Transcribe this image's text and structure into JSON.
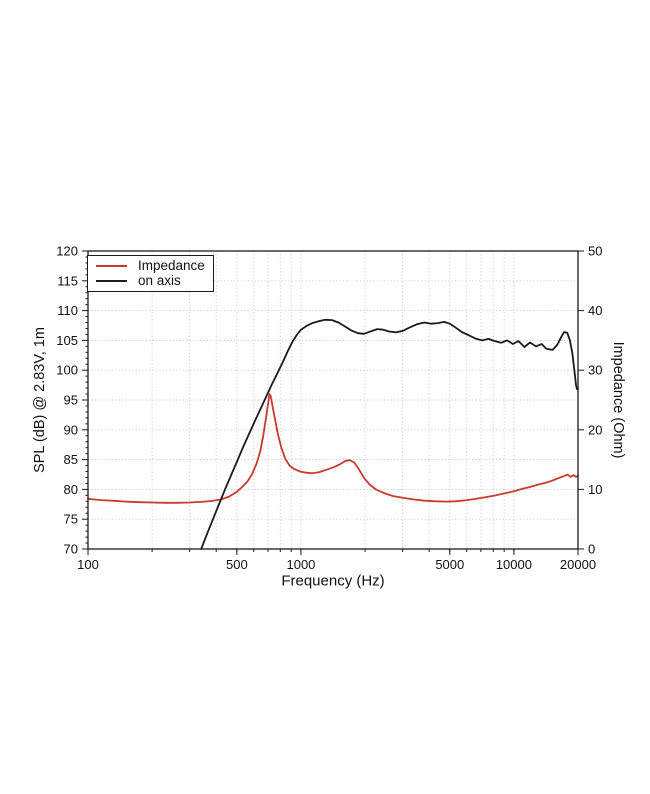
{
  "page": {
    "background": "#ffffff"
  },
  "chart_data": {
    "type": "line",
    "title": "",
    "xlabel": "Frequency (Hz)",
    "ylabel_left": "SPL (dB) @ 2.83V, 1m",
    "ylabel_right": "Impedance (Ohm)",
    "x_scale": "log",
    "xlim": [
      100,
      20000
    ],
    "ylim_left": [
      70,
      120
    ],
    "ylim_right": [
      0,
      50
    ],
    "x_major_ticks": [
      100,
      500,
      1000,
      5000,
      10000,
      20000
    ],
    "x_gridlines": [
      200,
      300,
      400,
      500,
      600,
      700,
      800,
      900,
      1000,
      2000,
      3000,
      4000,
      5000,
      6000,
      7000,
      8000,
      9000,
      10000
    ],
    "y_left_ticks": [
      70,
      75,
      80,
      85,
      90,
      95,
      100,
      105,
      110,
      115,
      120
    ],
    "y_left_gridlines": [
      75,
      80,
      85,
      90,
      95,
      100,
      105,
      110,
      115
    ],
    "y_right_ticks": [
      0,
      10,
      20,
      30,
      40,
      50
    ],
    "grid": {
      "style": "dotted",
      "color": "#bfbfbf"
    },
    "frame_color": "#1a1a1a",
    "legend": {
      "position": "top-left",
      "entries": [
        {
          "label": "Impedance",
          "color": "#c53b30"
        },
        {
          "label": "on axis",
          "color": "#1b1b1b"
        }
      ]
    },
    "series": [
      {
        "name": "Impedance",
        "axis": "right",
        "unit": "Ohm",
        "color": "#c53b30",
        "points": [
          [
            100,
            8.4
          ],
          [
            115,
            8.2
          ],
          [
            130,
            8.1
          ],
          [
            150,
            7.95
          ],
          [
            175,
            7.85
          ],
          [
            200,
            7.8
          ],
          [
            230,
            7.75
          ],
          [
            260,
            7.75
          ],
          [
            300,
            7.8
          ],
          [
            340,
            7.9
          ],
          [
            380,
            8.05
          ],
          [
            420,
            8.3
          ],
          [
            460,
            8.8
          ],
          [
            500,
            9.6
          ],
          [
            530,
            10.4
          ],
          [
            560,
            11.3
          ],
          [
            590,
            12.6
          ],
          [
            620,
            14.4
          ],
          [
            645,
            16.5
          ],
          [
            665,
            19.0
          ],
          [
            685,
            22.0
          ],
          [
            700,
            24.3
          ],
          [
            712,
            26.0
          ],
          [
            722,
            25.6
          ],
          [
            735,
            24.0
          ],
          [
            755,
            21.8
          ],
          [
            780,
            19.2
          ],
          [
            810,
            16.9
          ],
          [
            845,
            15.1
          ],
          [
            885,
            14.0
          ],
          [
            930,
            13.4
          ],
          [
            990,
            13.0
          ],
          [
            1060,
            12.8
          ],
          [
            1130,
            12.7
          ],
          [
            1220,
            12.9
          ],
          [
            1320,
            13.3
          ],
          [
            1420,
            13.7
          ],
          [
            1520,
            14.2
          ],
          [
            1620,
            14.8
          ],
          [
            1700,
            14.9
          ],
          [
            1780,
            14.5
          ],
          [
            1870,
            13.4
          ],
          [
            1980,
            11.9
          ],
          [
            2100,
            10.8
          ],
          [
            2250,
            10.0
          ],
          [
            2450,
            9.4
          ],
          [
            2700,
            8.9
          ],
          [
            3000,
            8.6
          ],
          [
            3400,
            8.3
          ],
          [
            3800,
            8.1
          ],
          [
            4300,
            8.0
          ],
          [
            4800,
            7.95
          ],
          [
            5300,
            8.0
          ],
          [
            5900,
            8.15
          ],
          [
            6600,
            8.4
          ],
          [
            7400,
            8.7
          ],
          [
            8200,
            9.0
          ],
          [
            9100,
            9.35
          ],
          [
            10000,
            9.7
          ],
          [
            11000,
            10.1
          ],
          [
            12000,
            10.45
          ],
          [
            13000,
            10.8
          ],
          [
            14100,
            11.1
          ],
          [
            15200,
            11.5
          ],
          [
            16200,
            11.9
          ],
          [
            17100,
            12.2
          ],
          [
            17900,
            12.5
          ],
          [
            18400,
            12.1
          ],
          [
            19100,
            12.4
          ],
          [
            19600,
            12.1
          ],
          [
            20000,
            12.3
          ]
        ]
      },
      {
        "name": "on axis",
        "axis": "left",
        "unit": "dB",
        "color": "#1b1b1b",
        "points": [
          [
            340,
            70
          ],
          [
            360,
            72.3
          ],
          [
            385,
            74.9
          ],
          [
            410,
            77.3
          ],
          [
            440,
            80.0
          ],
          [
            470,
            82.4
          ],
          [
            500,
            84.6
          ],
          [
            535,
            87.1
          ],
          [
            570,
            89.3
          ],
          [
            610,
            91.6
          ],
          [
            650,
            93.7
          ],
          [
            690,
            95.7
          ],
          [
            730,
            97.6
          ],
          [
            775,
            99.5
          ],
          [
            820,
            101.3
          ],
          [
            865,
            103.1
          ],
          [
            910,
            104.7
          ],
          [
            955,
            105.9
          ],
          [
            1000,
            106.8
          ],
          [
            1060,
            107.4
          ],
          [
            1130,
            107.9
          ],
          [
            1210,
            108.2
          ],
          [
            1300,
            108.45
          ],
          [
            1400,
            108.4
          ],
          [
            1500,
            108.0
          ],
          [
            1600,
            107.4
          ],
          [
            1720,
            106.7
          ],
          [
            1850,
            106.2
          ],
          [
            1980,
            106.1
          ],
          [
            2120,
            106.5
          ],
          [
            2280,
            106.9
          ],
          [
            2430,
            106.8
          ],
          [
            2600,
            106.5
          ],
          [
            2800,
            106.35
          ],
          [
            3000,
            106.6
          ],
          [
            3250,
            107.2
          ],
          [
            3500,
            107.7
          ],
          [
            3800,
            108.0
          ],
          [
            4100,
            107.8
          ],
          [
            4400,
            107.9
          ],
          [
            4700,
            108.1
          ],
          [
            5000,
            107.8
          ],
          [
            5300,
            107.2
          ],
          [
            5700,
            106.4
          ],
          [
            6100,
            105.9
          ],
          [
            6600,
            105.3
          ],
          [
            7100,
            105.0
          ],
          [
            7600,
            105.25
          ],
          [
            8100,
            104.9
          ],
          [
            8700,
            104.6
          ],
          [
            9300,
            105.0
          ],
          [
            9900,
            104.4
          ],
          [
            10500,
            104.9
          ],
          [
            11200,
            103.9
          ],
          [
            11900,
            104.65
          ],
          [
            12700,
            104.0
          ],
          [
            13500,
            104.4
          ],
          [
            14200,
            103.6
          ],
          [
            15200,
            103.4
          ],
          [
            16000,
            104.3
          ],
          [
            16700,
            105.6
          ],
          [
            17200,
            106.4
          ],
          [
            17800,
            106.3
          ],
          [
            18300,
            105.1
          ],
          [
            18800,
            102.9
          ],
          [
            19200,
            100.2
          ],
          [
            19600,
            97.4
          ],
          [
            19800,
            96.8
          ],
          [
            20000,
            97.0
          ]
        ]
      }
    ]
  }
}
